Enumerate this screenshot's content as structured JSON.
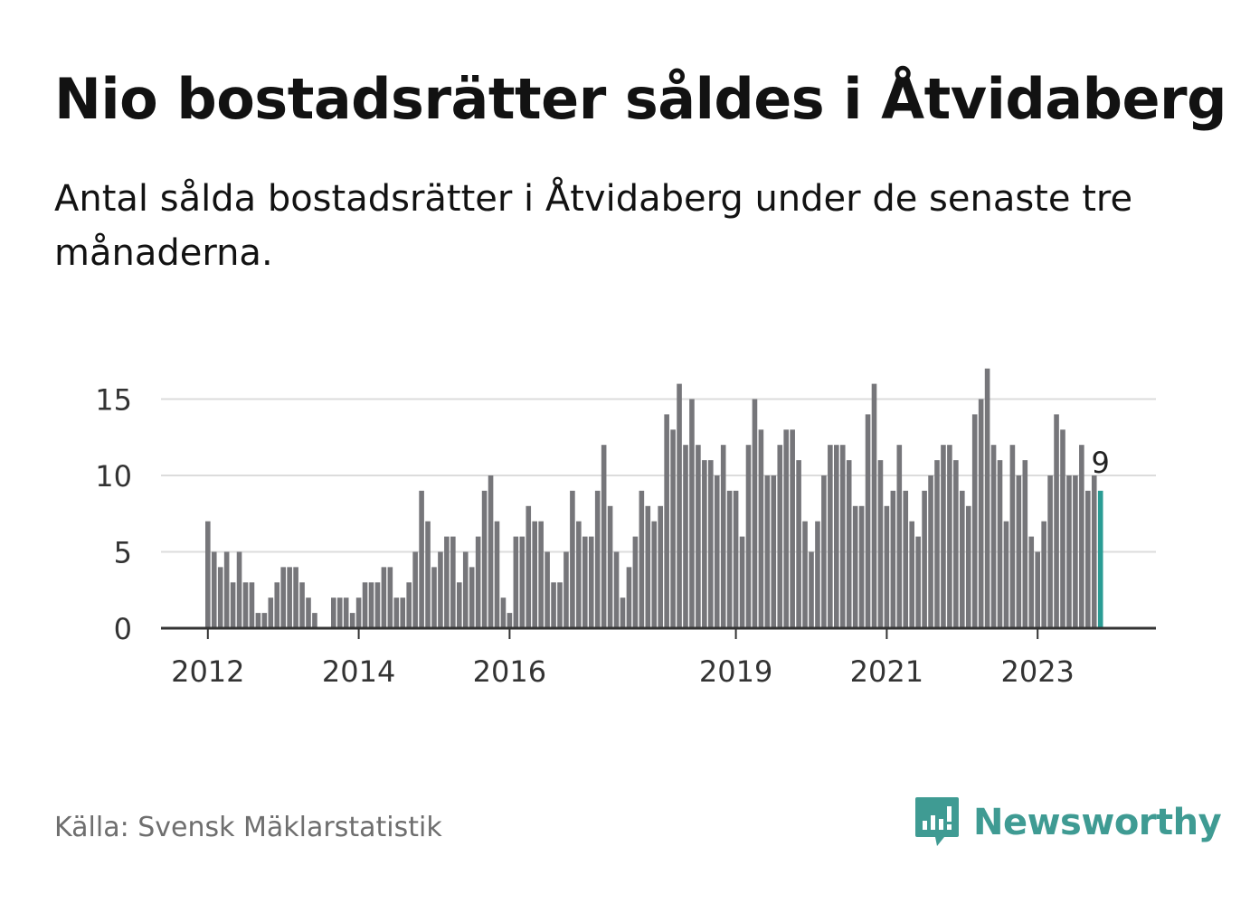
{
  "title": "Nio bostadsrätter såldes i Åtvidaberg",
  "subtitle": "Antal sålda bostadsrätter i Åtvidaberg under de senaste tre månaderna.",
  "source": "Källa: Svensk Mäklarstatistik",
  "brand": {
    "name": "Newsworthy",
    "icon": "newsworthy-logo-icon",
    "color": "#3f9b93"
  },
  "colors": {
    "bar": "#76767a",
    "highlight": "#2a9c94",
    "grid": "#dcdcdc",
    "axis": "#333333",
    "text": "#333333"
  },
  "chart_data": {
    "type": "bar",
    "title": "",
    "xlabel": "",
    "ylabel": "",
    "ylim": [
      0,
      17
    ],
    "yticks": [
      0,
      5,
      10,
      15
    ],
    "grid": true,
    "x_tick_labels": [
      "2012",
      "2014",
      "2016",
      "2019",
      "2021",
      "2023"
    ],
    "annotation": "9",
    "start_month": "2012-01",
    "values": [
      7,
      5,
      4,
      5,
      3,
      5,
      3,
      3,
      1,
      1,
      2,
      3,
      4,
      4,
      4,
      3,
      2,
      1,
      0,
      0,
      2,
      2,
      2,
      1,
      2,
      3,
      3,
      3,
      4,
      4,
      2,
      2,
      3,
      5,
      9,
      7,
      4,
      5,
      6,
      6,
      3,
      5,
      4,
      6,
      9,
      10,
      7,
      2,
      1,
      6,
      6,
      8,
      7,
      7,
      5,
      3,
      3,
      5,
      9,
      7,
      6,
      6,
      9,
      12,
      8,
      5,
      2,
      4,
      6,
      9,
      8,
      7,
      8,
      14,
      13,
      16,
      12,
      15,
      12,
      11,
      11,
      10,
      12,
      9,
      9,
      6,
      12,
      15,
      13,
      10,
      10,
      12,
      13,
      13,
      11,
      7,
      5,
      7,
      10,
      12,
      12,
      12,
      11,
      8,
      8,
      14,
      16,
      11,
      8,
      9,
      12,
      9,
      7,
      6,
      9,
      10,
      11,
      12,
      12,
      11,
      9,
      8,
      14,
      15,
      17,
      12,
      11,
      7,
      12,
      10,
      11,
      6,
      5,
      7,
      10,
      14,
      13,
      10,
      10,
      12,
      9,
      10,
      9
    ],
    "highlight_last": true
  }
}
